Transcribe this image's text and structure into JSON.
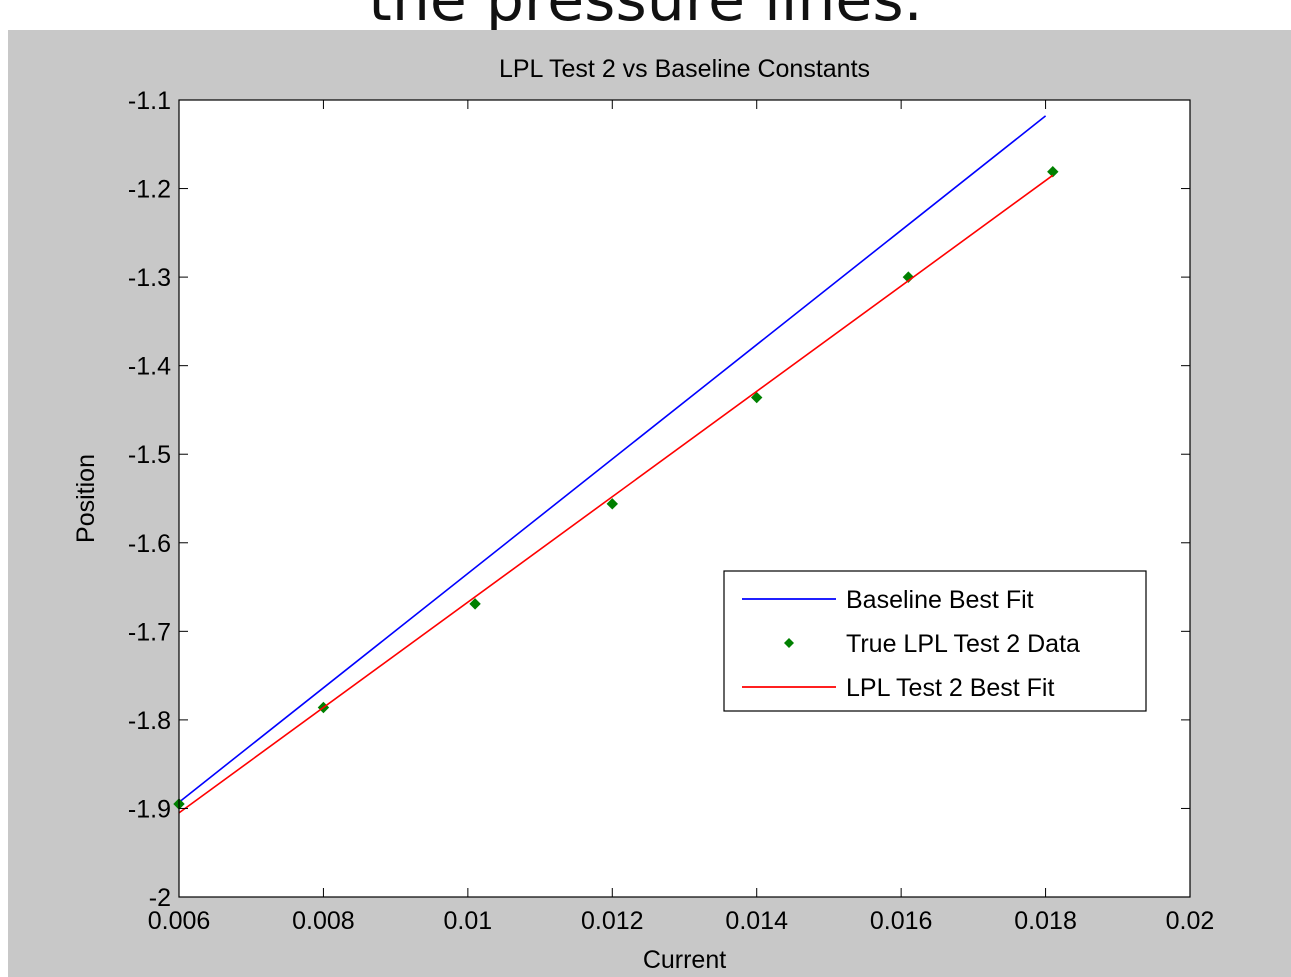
{
  "page": {
    "top_caption": "the pressure lines."
  },
  "chart_data": {
    "type": "line",
    "title": "LPL Test 2 vs Baseline Constants",
    "xlabel": "Current",
    "ylabel": "Position",
    "xlim": [
      0.006,
      0.02
    ],
    "ylim": [
      -2,
      -1.1
    ],
    "x_ticks": [
      0.006,
      0.008,
      0.01,
      0.012,
      0.014,
      0.016,
      0.018,
      0.02
    ],
    "x_tick_labels": [
      "0.006",
      "0.008",
      "0.01",
      "0.012",
      "0.014",
      "0.016",
      "0.018",
      "0.02"
    ],
    "y_ticks": [
      -2,
      -1.9,
      -1.8,
      -1.7,
      -1.6,
      -1.5,
      -1.4,
      -1.3,
      -1.2,
      -1.1
    ],
    "y_tick_labels": [
      "-2",
      "-1.9",
      "-1.8",
      "-1.7",
      "-1.6",
      "-1.5",
      "-1.4",
      "-1.3",
      "-1.2",
      "-1.1"
    ],
    "grid": false,
    "legend_position": "center-right",
    "series": [
      {
        "name": "Baseline Best Fit",
        "type": "line",
        "color": "#0000ff",
        "x": [
          0.006,
          0.018
        ],
        "y": [
          -1.893,
          -1.118
        ]
      },
      {
        "name": "True LPL Test 2 Data",
        "type": "scatter",
        "marker": "diamond",
        "color": "#008000",
        "x": [
          0.006,
          0.008,
          0.0101,
          0.012,
          0.014,
          0.0161,
          0.0181
        ],
        "y": [
          -1.895,
          -1.786,
          -1.669,
          -1.556,
          -1.436,
          -1.3,
          -1.181
        ]
      },
      {
        "name": "LPL Test 2 Best Fit",
        "type": "line",
        "color": "#ff0000",
        "x": [
          0.006,
          0.0181
        ],
        "y": [
          -1.905,
          -1.185
        ]
      }
    ]
  }
}
